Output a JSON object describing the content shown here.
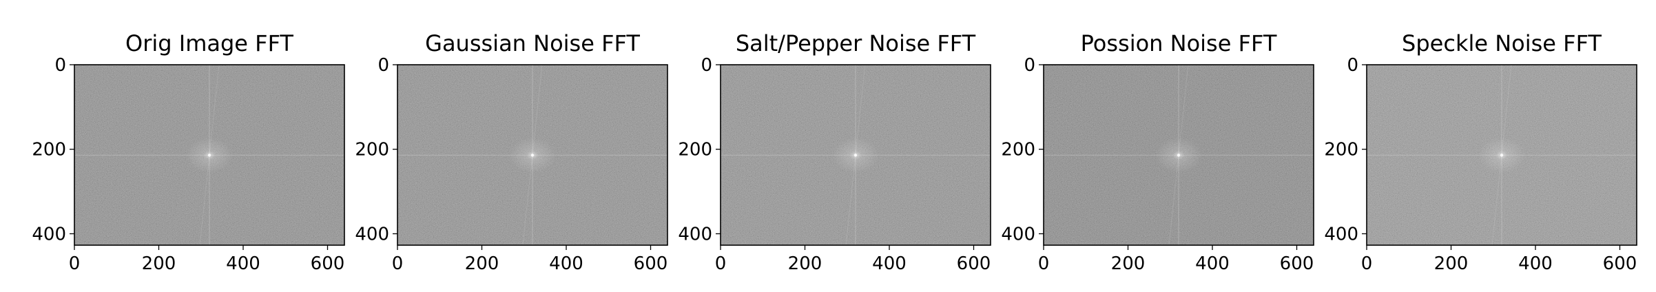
{
  "chart_data": [
    {
      "type": "heatmap",
      "title": "Orig Image FFT",
      "xlabel": "",
      "ylabel": "",
      "xlim": [
        0,
        640
      ],
      "ylim": [
        427,
        0
      ],
      "xticks": [
        0,
        200,
        400,
        600
      ],
      "yticks": [
        0,
        200,
        400
      ],
      "grid": false,
      "colormap": "gray",
      "spectrum_peak": [
        320,
        214
      ],
      "background_gray": "#777777"
    },
    {
      "type": "heatmap",
      "title": "Gaussian Noise FFT",
      "xlabel": "",
      "ylabel": "",
      "xlim": [
        0,
        640
      ],
      "ylim": [
        427,
        0
      ],
      "xticks": [
        0,
        200,
        400,
        600
      ],
      "yticks": [
        0,
        200,
        400
      ],
      "grid": false,
      "colormap": "gray",
      "spectrum_peak": [
        320,
        214
      ],
      "background_gray": "#7a7a7a"
    },
    {
      "type": "heatmap",
      "title": "Salt/Pepper Noise FFT",
      "xlabel": "",
      "ylabel": "",
      "xlim": [
        0,
        640
      ],
      "ylim": [
        427,
        0
      ],
      "xticks": [
        0,
        200,
        400,
        600
      ],
      "yticks": [
        0,
        200,
        400
      ],
      "grid": false,
      "colormap": "gray",
      "spectrum_peak": [
        320,
        214
      ],
      "background_gray": "#7d7d7d"
    },
    {
      "type": "heatmap",
      "title": "Possion Noise FFT",
      "xlabel": "",
      "ylabel": "",
      "xlim": [
        0,
        640
      ],
      "ylim": [
        427,
        0
      ],
      "xticks": [
        0,
        200,
        400,
        600
      ],
      "yticks": [
        0,
        200,
        400
      ],
      "grid": false,
      "colormap": "gray",
      "spectrum_peak": [
        320,
        214
      ],
      "background_gray": "#6f6f6f"
    },
    {
      "type": "heatmap",
      "title": "Speckle Noise FFT",
      "xlabel": "",
      "ylabel": "",
      "xlim": [
        0,
        640
      ],
      "ylim": [
        427,
        0
      ],
      "xticks": [
        0,
        200,
        400,
        600
      ],
      "yticks": [
        0,
        200,
        400
      ],
      "grid": false,
      "colormap": "gray",
      "spectrum_peak": [
        320,
        214
      ],
      "background_gray": "#888888"
    }
  ]
}
